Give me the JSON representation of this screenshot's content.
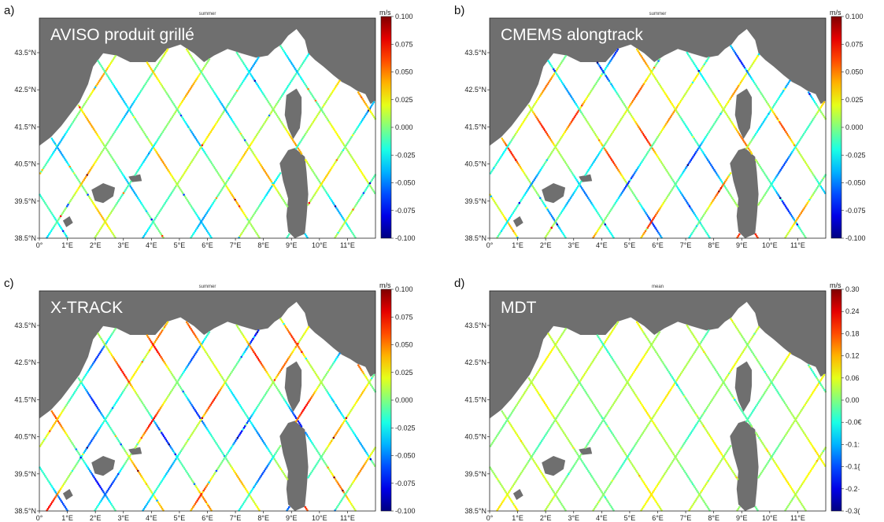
{
  "figure": {
    "colors": {
      "land": "#6f6f6f",
      "sea": "#ffffff",
      "frame": "#222222",
      "text_on_map": "#ffffff"
    },
    "colormap": "jet"
  },
  "chart_data": [
    {
      "type": "scatter",
      "panel_label": "a)",
      "title": "summer",
      "overlay_label": "AVISO produit grillé",
      "colorbar": {
        "unit": "m/s",
        "ticks": [
          "0.100",
          "0.075",
          "0.050",
          "0.025",
          "0.000",
          "-0.025",
          "-0.050",
          "-0.075",
          "-0.100"
        ],
        "range": [
          -0.1,
          0.1
        ]
      },
      "x_ticks": [
        "0°",
        "1°E",
        "2°E",
        "3°E",
        "4°E",
        "5°E",
        "6°E",
        "7°E",
        "8°E",
        "9°E",
        "10°E",
        "11°E"
      ],
      "y_ticks": [
        "43.5°N",
        "42.5°N",
        "41.5°N",
        "40.5°N",
        "39.5°N",
        "38.5°N"
      ],
      "xlim": [
        0,
        12
      ],
      "ylim": [
        38.5,
        44.5
      ],
      "seed": 11,
      "bias": 0.0,
      "spread": 0.045
    },
    {
      "type": "scatter",
      "panel_label": "b)",
      "title": "summer",
      "overlay_label": "CMEMS alongtrack",
      "colorbar": {
        "unit": "m/s",
        "ticks": [
          "0.100",
          "0.075",
          "0.050",
          "0.025",
          "0.000",
          "-0.025",
          "-0.050",
          "-0.075",
          "-0.100"
        ],
        "range": [
          -0.1,
          0.1
        ]
      },
      "x_ticks": [
        "0°",
        "1°E",
        "2°E",
        "3°E",
        "4°E",
        "5°E",
        "6°E",
        "7°E",
        "8°E",
        "9°E",
        "10°E",
        "11°E"
      ],
      "y_ticks": [
        "43.5°N",
        "42.5°N",
        "41.5°N",
        "40.5°N",
        "39.5°N",
        "38.5°N"
      ],
      "xlim": [
        0,
        12
      ],
      "ylim": [
        38.5,
        44.5
      ],
      "seed": 23,
      "bias": 0.0,
      "spread": 0.07
    },
    {
      "type": "scatter",
      "panel_label": "c)",
      "title": "summer",
      "overlay_label": "X-TRACK",
      "colorbar": {
        "unit": "m/s",
        "ticks": [
          "0.100",
          "0.075",
          "0.050",
          "0.025",
          "0.000",
          "-0.025",
          "-0.050",
          "-0.075",
          "-0.100"
        ],
        "range": [
          -0.1,
          0.1
        ]
      },
      "x_ticks": [
        "0°",
        "1°E",
        "2°E",
        "3°E",
        "4°E",
        "5°E",
        "6°E",
        "7°E",
        "8°E",
        "9°E",
        "10°E",
        "11°E"
      ],
      "y_ticks": [
        "43.5°N",
        "42.5°N",
        "41.5°N",
        "40.5°N",
        "39.5°N",
        "38.5°N"
      ],
      "xlim": [
        0,
        12
      ],
      "ylim": [
        38.5,
        44.5
      ],
      "seed": 37,
      "bias": 0.0,
      "spread": 0.075
    },
    {
      "type": "scatter",
      "panel_label": "d)",
      "title": "mean",
      "overlay_label": "MDT",
      "colorbar": {
        "unit": "m/s",
        "ticks": [
          "0.30",
          "0.24",
          "0.18",
          "0.12",
          "0.06",
          "0.00",
          "-0.0€",
          "-0.1:",
          "-0.1{",
          "-0.2·",
          "-0.3("
        ],
        "range": [
          -0.3,
          0.3
        ]
      },
      "x_ticks": [
        "0°",
        "1°E",
        "2°E",
        "3°E",
        "4°E",
        "5°E",
        "6°E",
        "7°E",
        "8°E",
        "9°E",
        "10°E",
        "11°E"
      ],
      "y_ticks": [
        "43.5°N",
        "42.5°N",
        "41.5°N",
        "40.5°N",
        "39.5°N",
        "38.5°N"
      ],
      "xlim": [
        0,
        12
      ],
      "ylim": [
        38.5,
        44.5
      ],
      "seed": 53,
      "bias": 0.02,
      "spread": 0.07
    }
  ]
}
